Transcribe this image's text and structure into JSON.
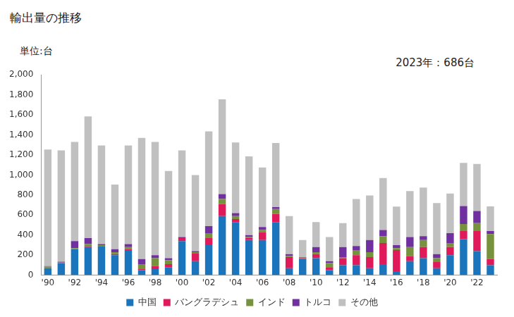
{
  "chart_data": {
    "type": "bar",
    "title": "輸出量の推移",
    "y_label": "単位:台",
    "annotation": "2023年：686台",
    "stacked": true,
    "grid": false,
    "legend": "bottom",
    "categories": [
      "'90",
      null,
      "'92",
      null,
      "'94",
      null,
      "'96",
      null,
      "'98",
      null,
      "'00",
      null,
      "'02",
      null,
      "'04",
      null,
      "'06",
      null,
      "'08",
      null,
      "'10",
      null,
      "'12",
      null,
      "'14",
      null,
      "'16",
      null,
      "'18",
      null,
      "'20",
      null,
      "'22",
      null
    ],
    "series": [
      {
        "name": "中国",
        "color": "#1a75bc",
        "values": [
          70,
          120,
          260,
          280,
          290,
          200,
          250,
          50,
          60,
          80,
          340,
          140,
          300,
          590,
          530,
          350,
          350,
          530,
          70,
          160,
          170,
          50,
          100,
          100,
          70,
          110,
          40,
          140,
          170,
          70,
          200,
          360,
          240,
          100
        ]
      },
      {
        "name": "バングラデシュ",
        "color": "#e0195a",
        "values": [
          0,
          0,
          0,
          10,
          0,
          10,
          10,
          10,
          30,
          30,
          30,
          80,
          70,
          120,
          30,
          20,
          80,
          80,
          110,
          10,
          40,
          30,
          70,
          100,
          110,
          210,
          210,
          50,
          110,
          60,
          80,
          80,
          200,
          60
        ]
      },
      {
        "name": "インド",
        "color": "#76923c",
        "values": [
          15,
          5,
          10,
          20,
          10,
          20,
          20,
          50,
          80,
          40,
          0,
          10,
          50,
          50,
          30,
          10,
          20,
          50,
          10,
          10,
          20,
          40,
          10,
          50,
          50,
          70,
          20,
          90,
          70,
          40,
          40,
          70,
          80,
          250
        ]
      },
      {
        "name": "トルコ",
        "color": "#7030a0",
        "values": [
          5,
          10,
          70,
          60,
          10,
          30,
          30,
          50,
          30,
          20,
          10,
          10,
          70,
          50,
          30,
          20,
          30,
          20,
          20,
          0,
          50,
          20,
          100,
          40,
          120,
          60,
          30,
          100,
          40,
          40,
          100,
          180,
          120,
          30
        ]
      },
      {
        "name": "その他",
        "color": "#c0c0c0",
        "values": [
          1165,
          1110,
          990,
          1215,
          985,
          645,
          985,
          1210,
          1130,
          870,
          865,
          760,
          945,
          945,
          705,
          785,
          595,
          640,
          380,
          170,
          250,
          240,
          240,
          470,
          445,
          520,
          385,
          460,
          485,
          510,
          395,
          430,
          470,
          246
        ]
      }
    ],
    "ylim": [
      0,
      2000
    ],
    "yticks": [
      0,
      200,
      400,
      600,
      800,
      {
        "value": 1000,
        "label": "1,000"
      },
      {
        "value": 1200,
        "label": "1,200"
      },
      {
        "value": 1400,
        "label": "1,400"
      },
      {
        "value": 1600,
        "label": "1,600"
      },
      {
        "value": 1800,
        "label": "1,800"
      },
      {
        "value": 2000,
        "label": "2,000"
      }
    ]
  }
}
